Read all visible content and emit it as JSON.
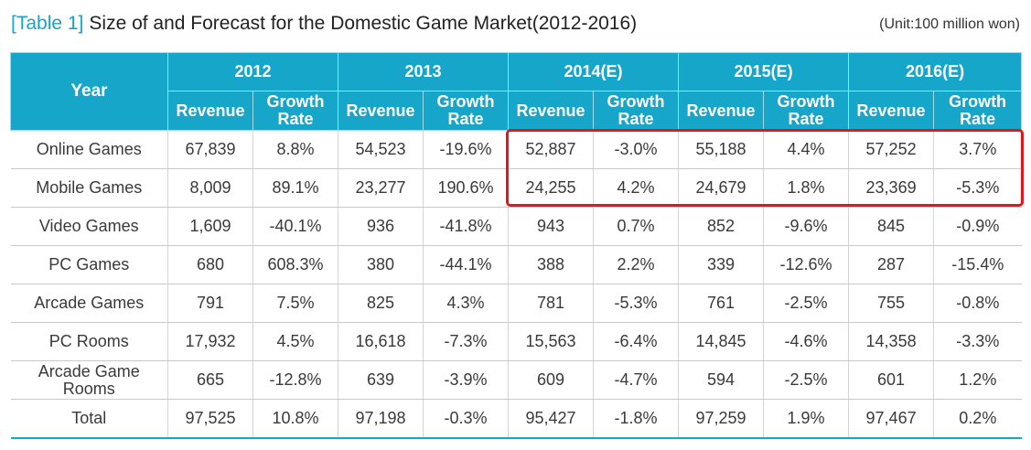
{
  "title": {
    "tag": "[Table 1]",
    "text": "Size of and Forecast for the Domestic Game Market(2012-2016)"
  },
  "unit": "(Unit:100 million won)",
  "header": {
    "year_label": "Year",
    "years": [
      "2012",
      "2013",
      "2014(E)",
      "2015(E)",
      "2016(E)"
    ],
    "revenue_label": "Revenue",
    "growth_label": "Growth Rate"
  },
  "rows": [
    {
      "category": "Online Games",
      "values": [
        "67,839",
        "8.8%",
        "54,523",
        "-19.6%",
        "52,887",
        "-3.0%",
        "55,188",
        "4.4%",
        "57,252",
        "3.7%"
      ]
    },
    {
      "category": "Mobile Games",
      "values": [
        "8,009",
        "89.1%",
        "23,277",
        "190.6%",
        "24,255",
        "4.2%",
        "24,679",
        "1.8%",
        "23,369",
        "-5.3%"
      ]
    },
    {
      "category": "Video Games",
      "values": [
        "1,609",
        "-40.1%",
        "936",
        "-41.8%",
        "943",
        "0.7%",
        "852",
        "-9.6%",
        "845",
        "-0.9%"
      ]
    },
    {
      "category": "PC Games",
      "values": [
        "680",
        "608.3%",
        "380",
        "-44.1%",
        "388",
        "2.2%",
        "339",
        "-12.6%",
        "287",
        "-15.4%"
      ]
    },
    {
      "category": "Arcade Games",
      "values": [
        "791",
        "7.5%",
        "825",
        "4.3%",
        "781",
        "-5.3%",
        "761",
        "-2.5%",
        "755",
        "-0.8%"
      ]
    },
    {
      "category": "PC Rooms",
      "values": [
        "17,932",
        "4.5%",
        "16,618",
        "-7.3%",
        "15,563",
        "-6.4%",
        "14,845",
        "-4.6%",
        "14,358",
        "-3.3%"
      ]
    },
    {
      "category": "Arcade Game Rooms",
      "values": [
        "665",
        "-12.8%",
        "639",
        "-3.9%",
        "609",
        "-4.7%",
        "594",
        "-2.5%",
        "601",
        "1.2%"
      ]
    },
    {
      "category": "Total",
      "values": [
        "97,525",
        "10.8%",
        "97,198",
        "-0.3%",
        "95,427",
        "-1.8%",
        "97,259",
        "1.9%",
        "97,467",
        "0.2%"
      ]
    }
  ],
  "colors": {
    "header_bg": "#16a6c9",
    "tag": "#1ba3c4",
    "highlight": "#e4161b"
  }
}
